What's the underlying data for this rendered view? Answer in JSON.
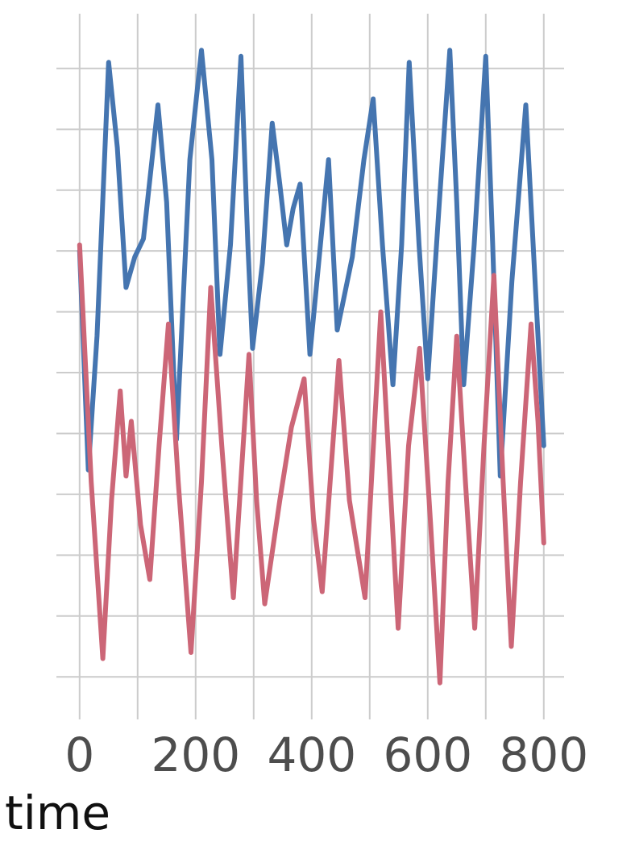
{
  "chart_data": {
    "type": "line",
    "xlabel": "time",
    "xlim": [
      -40,
      835
    ],
    "xticks": [
      0,
      200,
      400,
      600,
      800
    ],
    "x_minor_ticks": [
      100,
      300,
      500,
      700
    ],
    "ylim": [
      -0.7,
      10.9
    ],
    "yticks": [
      0,
      1,
      2,
      3,
      4,
      5,
      6,
      7,
      8,
      9,
      10
    ],
    "grid": true,
    "series": [
      {
        "color": "#4575b0",
        "x": [
          0,
          15,
          30,
          50,
          65,
          80,
          95,
          110,
          135,
          150,
          167,
          190,
          210,
          228,
          242,
          260,
          278,
          290,
          298,
          315,
          332,
          345,
          357,
          368,
          380,
          397,
          415,
          429,
          444,
          470,
          490,
          506,
          522,
          540,
          555,
          568,
          585,
          600,
          620,
          638,
          650,
          662,
          680,
          700,
          712,
          725,
          745,
          769,
          785,
          800
        ],
        "values": [
          7.0,
          3.4,
          5.6,
          10.1,
          8.7,
          6.4,
          6.9,
          7.2,
          9.4,
          7.8,
          3.9,
          8.5,
          10.3,
          8.5,
          5.3,
          7.1,
          10.2,
          7.1,
          5.4,
          6.8,
          9.1,
          8.1,
          7.1,
          7.7,
          8.1,
          5.3,
          7.1,
          8.5,
          5.7,
          6.9,
          8.5,
          9.5,
          7.1,
          4.8,
          7.1,
          10.1,
          7.1,
          4.9,
          7.8,
          10.3,
          7.8,
          4.8,
          7.1,
          10.2,
          7.1,
          3.3,
          6.5,
          9.4,
          6.5,
          3.8
        ]
      },
      {
        "color": "#cc6677",
        "x": [
          0,
          20,
          40,
          55,
          70,
          80,
          89,
          105,
          121,
          137,
          153,
          170,
          192,
          210,
          226,
          245,
          265,
          292,
          305,
          319,
          345,
          365,
          387,
          403,
          418,
          447,
          465,
          492,
          519,
          535,
          549,
          567,
          586,
          605,
          621,
          635,
          650,
          665,
          681,
          697,
          714,
          730,
          744,
          760,
          778,
          790,
          800
        ],
        "values": [
          7.1,
          3.2,
          0.3,
          2.9,
          4.7,
          3.3,
          4.2,
          2.5,
          1.6,
          3.8,
          5.8,
          3.2,
          0.4,
          3.2,
          6.4,
          3.8,
          1.3,
          5.3,
          2.9,
          1.2,
          2.9,
          4.1,
          4.9,
          2.6,
          1.4,
          5.2,
          2.9,
          1.3,
          6.0,
          3.2,
          0.8,
          3.8,
          5.4,
          2.5,
          -0.1,
          3.2,
          5.6,
          3.2,
          0.8,
          3.8,
          6.6,
          3.2,
          0.5,
          3.2,
          5.8,
          4.2,
          2.2
        ]
      }
    ]
  }
}
